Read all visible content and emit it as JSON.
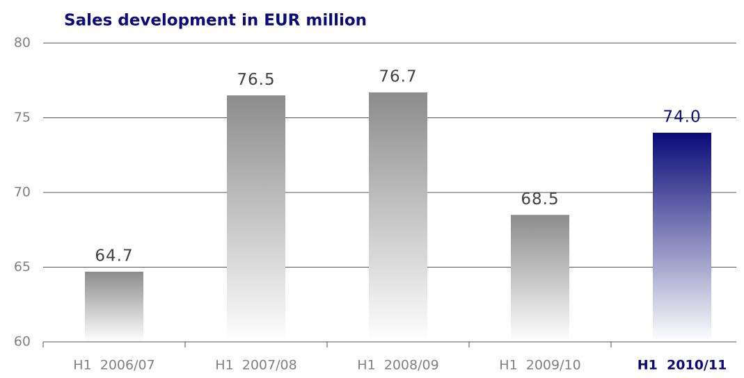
{
  "chart_data": {
    "type": "bar",
    "title": "Sales development in EUR million",
    "categories": [
      "H1  2006/07",
      "H1  2007/08",
      "H1  2008/09",
      "H1  2009/10",
      "H1  2010/11"
    ],
    "values": [
      64.7,
      76.5,
      76.7,
      68.5,
      74.0
    ],
    "value_labels": [
      "64.7",
      "76.5",
      "76.7",
      "68.5",
      "74.0"
    ],
    "colors": [
      "#8c8c8c",
      "#8c8c8c",
      "#8c8c8c",
      "#8c8c8c",
      "#0a0a78"
    ],
    "ylim": [
      60,
      80
    ],
    "yticks": [
      60,
      65,
      70,
      75,
      80
    ],
    "grid": true
  }
}
